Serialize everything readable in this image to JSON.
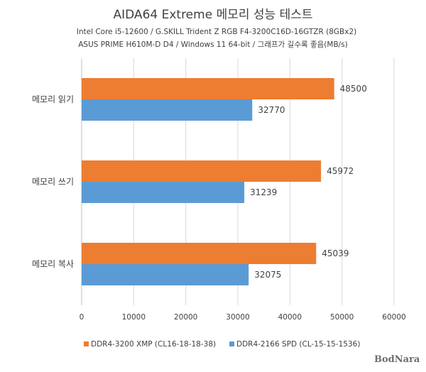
{
  "chart_data": {
    "type": "bar",
    "orientation": "horizontal",
    "title": "AIDA64 Extreme 메모리 성능 테스트",
    "subtitle_lines": [
      "Intel Core i5-12600 / G.SKILL Trident Z RGB F4-3200C16D-16GTZR (8GBx2)",
      "ASUS PRIME H610M-D D4 / Windows 11 64-bit / 그래프가 길수록 좋음(MB/s)"
    ],
    "categories": [
      "메모리 읽기",
      "메모리 쓰기",
      "메모리 복사"
    ],
    "series": [
      {
        "name": "DDR4-3200 XMP (CL16-18-18-38)",
        "color": "#ed7d31",
        "values": [
          48500,
          45972,
          45039
        ]
      },
      {
        "name": "DDR4-2166 SPD (CL-15-15-1536)",
        "color": "#5b9bd5",
        "values": [
          32770,
          31239,
          32075
        ]
      }
    ],
    "xlim": [
      0,
      60000
    ],
    "xticks": [
      0,
      10000,
      20000,
      30000,
      40000,
      50000,
      60000
    ],
    "grid": true,
    "legend_position": "bottom"
  },
  "watermark": {
    "text": "BodNara"
  }
}
